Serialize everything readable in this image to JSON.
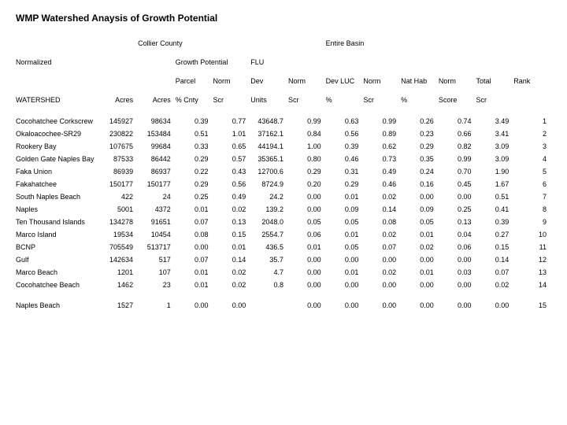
{
  "title": "WMP Watershed Anaysis of Growth Potential",
  "groupHeaders": {
    "collier": "Collier County",
    "basin": "Entire Basin"
  },
  "subHeaders": {
    "normalized": "Normalized",
    "growth": "Growth Potential",
    "flu": "FLU"
  },
  "colHeads": {
    "parcel": "Parcel",
    "norm": "Norm",
    "dev": "Dev",
    "devluc": "Dev LUC",
    "nathab": "Nat Hab",
    "total": "Total",
    "rank": "Rank"
  },
  "rowHead": {
    "watershed": "WATERSHED",
    "acres": "Acres",
    "pcnty": "% Cnty",
    "scr": "Scr",
    "units": "Units",
    "pct": "%",
    "score": "Score"
  },
  "rows": [
    {
      "name": "Cocohatchee Corkscrew",
      "a1": "145927",
      "a2": "98634",
      "pc": "0.39",
      "n1": "0.77",
      "dev": "43648.7",
      "n2": "0.99",
      "dl": "0.63",
      "n3": "0.99",
      "nh": "0.26",
      "n4": "0.74",
      "tot": "3.49",
      "rk": "1"
    },
    {
      "name": "Okaloacochee-SR29",
      "a1": "230822",
      "a2": "153484",
      "pc": "0.51",
      "n1": "1.01",
      "dev": "37162.1",
      "n2": "0.84",
      "dl": "0.56",
      "n3": "0.89",
      "nh": "0.23",
      "n4": "0.66",
      "tot": "3.41",
      "rk": "2"
    },
    {
      "name": "Rookery Bay",
      "a1": "107675",
      "a2": "99684",
      "pc": "0.33",
      "n1": "0.65",
      "dev": "44194.1",
      "n2": "1.00",
      "dl": "0.39",
      "n3": "0.62",
      "nh": "0.29",
      "n4": "0.82",
      "tot": "3.09",
      "rk": "3"
    },
    {
      "name": "Golden Gate Naples Bay",
      "a1": "87533",
      "a2": "86442",
      "pc": "0.29",
      "n1": "0.57",
      "dev": "35365.1",
      "n2": "0.80",
      "dl": "0.46",
      "n3": "0.73",
      "nh": "0.35",
      "n4": "0.99",
      "tot": "3.09",
      "rk": "4"
    },
    {
      "name": "Faka Union",
      "a1": "86939",
      "a2": "86937",
      "pc": "0.22",
      "n1": "0.43",
      "dev": "12700.6",
      "n2": "0.29",
      "dl": "0.31",
      "n3": "0.49",
      "nh": "0.24",
      "n4": "0.70",
      "tot": "1.90",
      "rk": "5"
    },
    {
      "name": "Fakahatchee",
      "a1": "150177",
      "a2": "150177",
      "pc": "0.29",
      "n1": "0.56",
      "dev": "8724.9",
      "n2": "0.20",
      "dl": "0.29",
      "n3": "0.46",
      "nh": "0.16",
      "n4": "0.45",
      "tot": "1.67",
      "rk": "6"
    },
    {
      "name": "South Naples Beach",
      "a1": "422",
      "a2": "24",
      "pc": "0.25",
      "n1": "0.49",
      "dev": "24.2",
      "n2": "0.00",
      "dl": "0.01",
      "n3": "0.02",
      "nh": "0.00",
      "n4": "0.00",
      "tot": "0.51",
      "rk": "7"
    },
    {
      "name": "Naples",
      "a1": "5001",
      "a2": "4372",
      "pc": "0.01",
      "n1": "0.02",
      "dev": "139.2",
      "n2": "0.00",
      "dl": "0.09",
      "n3": "0.14",
      "nh": "0.09",
      "n4": "0.25",
      "tot": "0.41",
      "rk": "8"
    },
    {
      "name": "Ten Thousand Islands",
      "a1": "134278",
      "a2": "91651",
      "pc": "0.07",
      "n1": "0.13",
      "dev": "2048.0",
      "n2": "0.05",
      "dl": "0.05",
      "n3": "0.08",
      "nh": "0.05",
      "n4": "0.13",
      "tot": "0.39",
      "rk": "9"
    },
    {
      "name": "Marco Island",
      "a1": "19534",
      "a2": "10454",
      "pc": "0.08",
      "n1": "0.15",
      "dev": "2554.7",
      "n2": "0.06",
      "dl": "0.01",
      "n3": "0.02",
      "nh": "0.01",
      "n4": "0.04",
      "tot": "0.27",
      "rk": "10"
    },
    {
      "name": "BCNP",
      "a1": "705549",
      "a2": "513717",
      "pc": "0.00",
      "n1": "0.01",
      "dev": "436.5",
      "n2": "0.01",
      "dl": "0.05",
      "n3": "0.07",
      "nh": "0.02",
      "n4": "0.06",
      "tot": "0.15",
      "rk": "11"
    },
    {
      "name": "Gulf",
      "a1": "142634",
      "a2": "517",
      "pc": "0.07",
      "n1": "0.14",
      "dev": "35.7",
      "n2": "0.00",
      "dl": "0.00",
      "n3": "0.00",
      "nh": "0.00",
      "n4": "0.00",
      "tot": "0.14",
      "rk": "12"
    },
    {
      "name": "Marco Beach",
      "a1": "1201",
      "a2": "107",
      "pc": "0.01",
      "n1": "0.02",
      "dev": "4.7",
      "n2": "0.00",
      "dl": "0.01",
      "n3": "0.02",
      "nh": "0.01",
      "n4": "0.03",
      "tot": "0.07",
      "rk": "13"
    },
    {
      "name": "Cocohatchee Beach",
      "a1": "1462",
      "a2": "23",
      "pc": "0.01",
      "n1": "0.02",
      "dev": "0.8",
      "n2": "0.00",
      "dl": "0.00",
      "n3": "0.00",
      "nh": "0.00",
      "n4": "0.00",
      "tot": "0.02",
      "rk": "14"
    }
  ],
  "lastRow": {
    "name": "Naples Beach",
    "a1": "1527",
    "a2": "1",
    "pc": "0.00",
    "n1": "0.00",
    "dev": "",
    "n2": "0.00",
    "dl": "0.00",
    "n3": "0.00",
    "nh": "0.00",
    "n4": "0.00",
    "tot": "0.00",
    "rk": "15"
  }
}
